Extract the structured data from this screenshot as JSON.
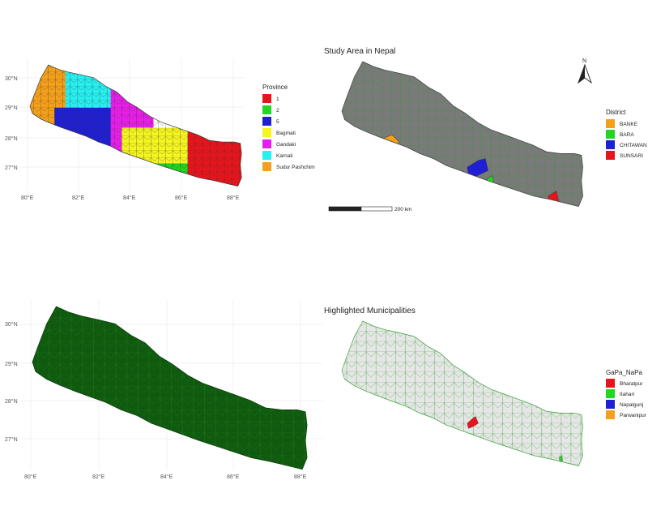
{
  "maps": [
    {
      "id": "province-map",
      "title": "",
      "x_ticks": [
        "80°E",
        "82°E",
        "84°E",
        "86°E",
        "88°E"
      ],
      "y_ticks": [
        "30°N",
        "29°N",
        "28°N",
        "27°N"
      ],
      "legend": {
        "title": "Province",
        "items": [
          {
            "label": "1",
            "color": "#e8141c"
          },
          {
            "label": "2",
            "color": "#22d622"
          },
          {
            "label": "5",
            "color": "#1f1fd6"
          },
          {
            "label": "Bagmati",
            "color": "#f5f520"
          },
          {
            "label": "Gandaki",
            "color": "#e81ee8"
          },
          {
            "label": "Karnali",
            "color": "#26f0f0"
          },
          {
            "label": "Sudur Pashchim",
            "color": "#f5a01a"
          }
        ]
      }
    },
    {
      "id": "study-area-map",
      "title": "Study Area in Nepal",
      "north_label": "N",
      "scale_label": "200 km",
      "base_color": "#7a7a7a",
      "legend": {
        "title": "District",
        "items": [
          {
            "label": "BANKE",
            "color": "#f5a01a"
          },
          {
            "label": "BARA",
            "color": "#22d622"
          },
          {
            "label": "CHITAWAN",
            "color": "#1f1fd6"
          },
          {
            "label": "SUNSARI",
            "color": "#e8141c"
          }
        ]
      }
    },
    {
      "id": "municipal-map",
      "title": "",
      "base_color": "#0f5a0f",
      "x_ticks": [
        "80°E",
        "82°E",
        "84°E",
        "86°E",
        "88°E"
      ],
      "y_ticks": [
        "30°N",
        "29°N",
        "28°N",
        "27°N"
      ]
    },
    {
      "id": "highlighted-map",
      "title": "Highlighted Municipalities",
      "base_color": "#e6e6e6",
      "legend": {
        "title": "GaPa_NaPa",
        "items": [
          {
            "label": "Bharatpur",
            "color": "#e8141c"
          },
          {
            "label": "Itahari",
            "color": "#22d622"
          },
          {
            "label": "Nepalgunj",
            "color": "#1f1fd6"
          },
          {
            "label": "Parwanipur",
            "color": "#f5a01a"
          }
        ]
      }
    }
  ]
}
